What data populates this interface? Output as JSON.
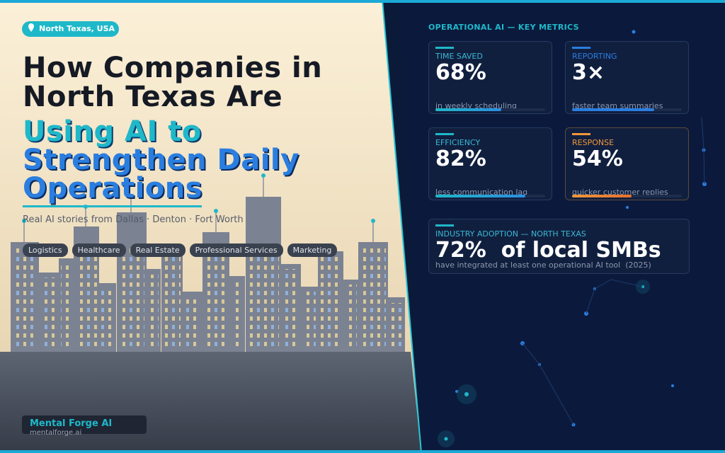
{
  "badge": "North Texas, USA",
  "title": {
    "lines_dark": [
      "How Companies in",
      "North Texas Are"
    ],
    "line_teal": "Using AI to",
    "lines_blue": [
      "Strengthen Daily",
      "Operations"
    ]
  },
  "subtitle": "Real AI stories from Dallas · Denton · Fort Worth",
  "tags": [
    "Logistics",
    "Healthcare",
    "Real Estate",
    "Professional Services",
    "Marketing"
  ],
  "footer": {
    "brand": "Mental Forge AI",
    "url": "mentalforge.ai"
  },
  "panel": {
    "heading": "OPERATIONAL AI — KEY METRICS",
    "cards": [
      {
        "label": "TIME SAVED",
        "value": "68%",
        "caption": "in weekly scheduling"
      },
      {
        "label": "REPORTING",
        "value": "3×",
        "caption": "faster team summaries"
      },
      {
        "label": "EFFICIENCY",
        "value": "82%",
        "caption": "less communication lag"
      },
      {
        "label": "RESPONSE",
        "value": "54%",
        "caption": "quicker customer replies"
      }
    ],
    "adoption": {
      "label": "INDUSTRY ADOPTION — NORTH TEXAS",
      "value": "72%",
      "value_text": "of local SMBs",
      "caption": "have integrated at least one operational AI tool",
      "year": "(2025)"
    }
  }
}
